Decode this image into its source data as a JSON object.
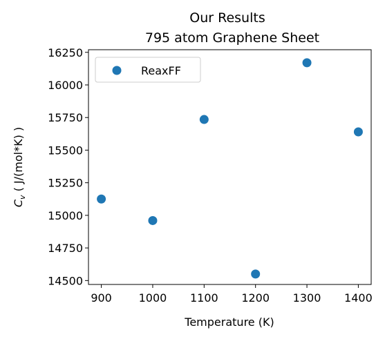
{
  "chart_data": {
    "type": "scatter",
    "title_lines": [
      "Our Results",
      "795 atom Graphene Sheet"
    ],
    "xlabel": "Temperature (K)",
    "ylabel_symbol": "C",
    "ylabel_subscript": "v",
    "ylabel_rest": " ( J/(mol*K) )",
    "xlim": [
      875,
      1425
    ],
    "ylim": [
      14470,
      16270
    ],
    "xticks": [
      900,
      1000,
      1100,
      1200,
      1300,
      1400
    ],
    "yticks": [
      14500,
      14750,
      15000,
      15250,
      15500,
      15750,
      16000,
      16250
    ],
    "grid": false,
    "legend_position": "top-left",
    "series": [
      {
        "name": "ReaxFF",
        "color": "#1f77b4",
        "x": [
          900,
          1000,
          1100,
          1200,
          1300,
          1400
        ],
        "y": [
          15125,
          14960,
          15735,
          14550,
          16170,
          15640
        ]
      }
    ]
  }
}
